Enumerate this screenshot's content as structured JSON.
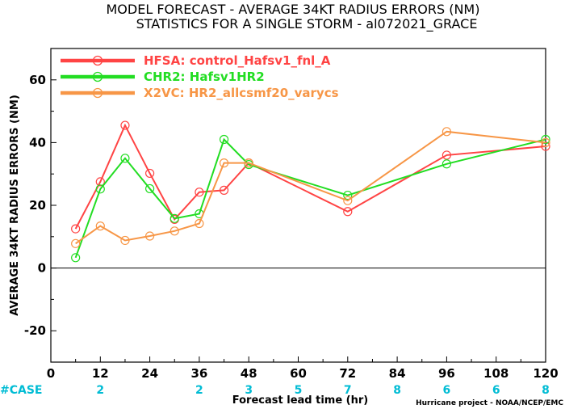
{
  "chart_data": {
    "type": "line",
    "title": "MODEL FORECAST - AVERAGE 34KT RADIUS ERRORS (NM)",
    "subtitle": "STATISTICS FOR A SINGLE STORM - al072021_GRACE",
    "xlabel": "Forecast lead time (hr)",
    "ylabel": "AVERAGE 34KT RADIUS ERRORS (NM)",
    "xlim": [
      0,
      120
    ],
    "ylim": [
      -30,
      70
    ],
    "xticks": [
      0,
      12,
      24,
      36,
      48,
      60,
      72,
      84,
      96,
      108,
      120
    ],
    "yticks": [
      -20,
      0,
      20,
      40,
      60
    ],
    "grid": false,
    "legend_position": "top-left",
    "zero_line": true,
    "series": [
      {
        "name": "HFSA: control_Hafsv1_fnl_A",
        "color": "#ff4444",
        "x": [
          6,
          12,
          18,
          24,
          30,
          36,
          42,
          48,
          72,
          96,
          120
        ],
        "y": [
          12.5,
          27.5,
          45.5,
          30.2,
          15.5,
          24.2,
          24.8,
          33.5,
          18.0,
          36.0,
          38.8
        ]
      },
      {
        "name": "CHR2: Hafsv1HR2",
        "color": "#22dd22",
        "x": [
          6,
          12,
          18,
          24,
          30,
          36,
          42,
          48,
          72,
          96,
          120
        ],
        "y": [
          3.3,
          25.2,
          35.0,
          25.3,
          15.8,
          17.3,
          41.0,
          33.0,
          23.2,
          33.2,
          41.0
        ]
      },
      {
        "name": "X2VC: HR2_allcsmf20_varycs",
        "color": "#f79646",
        "x": [
          6,
          12,
          18,
          24,
          30,
          36,
          42,
          48,
          72,
          96,
          120
        ],
        "y": [
          7.8,
          13.4,
          8.8,
          10.2,
          11.8,
          14.2,
          33.5,
          33.5,
          21.5,
          43.5,
          40.0
        ]
      }
    ],
    "case_counts": {
      "label": "#CASE",
      "x": [
        12,
        36,
        48,
        60,
        72,
        84,
        96,
        108,
        120
      ],
      "values": [
        "2",
        "2",
        "3",
        "5",
        "7",
        "8",
        "6",
        "6",
        "8"
      ]
    },
    "credit": "Hurricane project - NOAA/NCEP/EMC"
  },
  "colors": {
    "case_label": "#00bcd4",
    "axis": "#000000"
  }
}
